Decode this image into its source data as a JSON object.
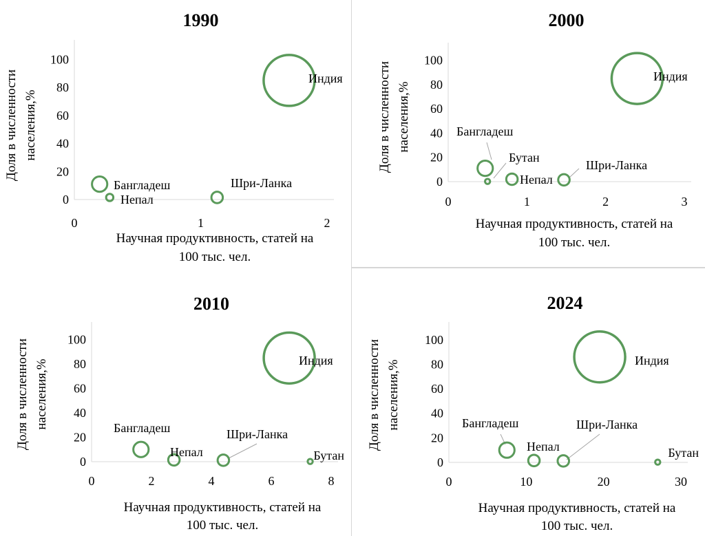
{
  "chart_data": [
    {
      "type": "bubble",
      "title": "1990",
      "xlabel": [
        "Научная продуктивность, статей на",
        "100 тыс. чел."
      ],
      "ylabel": [
        "Доля в численности",
        "населения,%"
      ],
      "xlim": [
        0,
        2
      ],
      "ylim": [
        0,
        110
      ],
      "xticks": [
        0,
        1,
        2
      ],
      "yticks": [
        0,
        20,
        40,
        60,
        80,
        100
      ],
      "color": "#6aa06a",
      "ring_color": "#5a9a5a",
      "points": [
        {
          "label": "Индия",
          "x": 1.7,
          "y": 85,
          "size": 1
        },
        {
          "label": "Бангладеш",
          "x": 0.2,
          "y": 11,
          "size": 0.09
        },
        {
          "label": "Непал",
          "x": 0.28,
          "y": 1.5,
          "size": 0.02
        },
        {
          "label": "Шри-Ланка",
          "x": 1.13,
          "y": 1.5,
          "size": 0.05
        }
      ]
    },
    {
      "type": "bubble",
      "title": "2000",
      "xlabel": [
        "Научная продуктивность, статей на",
        "100 тыс. чел."
      ],
      "ylabel": [
        "Доля в численности",
        "населения,%"
      ],
      "xlim": [
        0,
        3
      ],
      "ylim": [
        0,
        110
      ],
      "xticks": [
        0,
        1,
        2,
        3
      ],
      "yticks": [
        0,
        20,
        40,
        60,
        80,
        100
      ],
      "color": "#6aa06a",
      "ring_color": "#5a9a5a",
      "points": [
        {
          "label": "Индия",
          "x": 2.4,
          "y": 85,
          "size": 1
        },
        {
          "label": "Бангладеш",
          "x": 0.47,
          "y": 11,
          "size": 0.09
        },
        {
          "label": "Бутан",
          "x": 0.5,
          "y": 0.2,
          "size": 0.01
        },
        {
          "label": "Непал",
          "x": 0.81,
          "y": 2,
          "size": 0.05
        },
        {
          "label": "Шри-Ланка",
          "x": 1.47,
          "y": 1.5,
          "size": 0.05
        }
      ]
    },
    {
      "type": "bubble",
      "title": "2010",
      "xlabel": [
        "Научная продуктивность, статей на",
        "100 тыс. чел."
      ],
      "ylabel": [
        "Доля в численности",
        "населения,%"
      ],
      "xlim": [
        0,
        8
      ],
      "ylim": [
        0,
        110
      ],
      "xticks": [
        0,
        2,
        4,
        6,
        8
      ],
      "yticks": [
        0,
        20,
        40,
        60,
        80,
        100
      ],
      "color": "#6aa06a",
      "ring_color": "#5a9a5a",
      "points": [
        {
          "label": "Индия",
          "x": 6.6,
          "y": 85,
          "size": 1
        },
        {
          "label": "Бангладеш",
          "x": 1.65,
          "y": 10,
          "size": 0.09
        },
        {
          "label": "Непал",
          "x": 2.75,
          "y": 1.5,
          "size": 0.05
        },
        {
          "label": "Шри-Ланка",
          "x": 4.4,
          "y": 1.2,
          "size": 0.05
        },
        {
          "label": "Бутан",
          "x": 7.3,
          "y": 0.2,
          "size": 0.01
        }
      ]
    },
    {
      "type": "bubble",
      "title": "2024",
      "xlabel": [
        "Научная продуктивность, статей на",
        "100 тыс. чел."
      ],
      "ylabel": [
        "Доля в численности",
        "населения,%"
      ],
      "xlim": [
        0,
        30
      ],
      "ylim": [
        0,
        110
      ],
      "xticks": [
        0,
        10,
        20,
        30
      ],
      "yticks": [
        0,
        20,
        40,
        60,
        80,
        100
      ],
      "color": "#6aa06a",
      "ring_color": "#5a9a5a",
      "points": [
        {
          "label": "Индия",
          "x": 19.5,
          "y": 86,
          "size": 1
        },
        {
          "label": "Бангладеш",
          "x": 7.5,
          "y": 10,
          "size": 0.09
        },
        {
          "label": "Непал",
          "x": 11,
          "y": 1.5,
          "size": 0.05
        },
        {
          "label": "Шри-Ланка",
          "x": 14.8,
          "y": 1.2,
          "size": 0.05
        },
        {
          "label": "Бутан",
          "x": 27,
          "y": 0.2,
          "size": 0.01
        }
      ]
    }
  ]
}
